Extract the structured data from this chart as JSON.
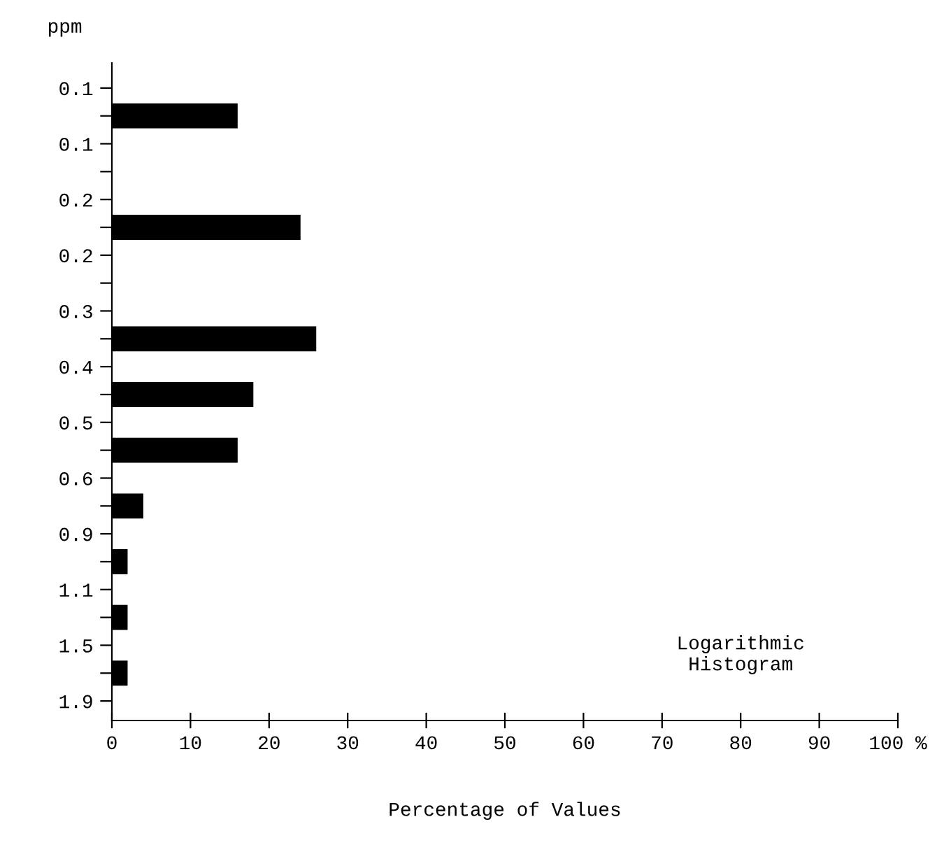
{
  "chart_data": {
    "type": "bar",
    "orientation": "horizontal",
    "categories": [
      "0.1",
      null,
      "0.1",
      null,
      "0.2",
      null,
      "0.2",
      null,
      "0.3",
      null,
      "0.4",
      null,
      "0.5",
      null,
      "0.6",
      null,
      "0.9",
      null,
      "1.1",
      null,
      "1.5",
      null,
      "1.9"
    ],
    "values": [
      null,
      16,
      null,
      0,
      null,
      24,
      null,
      0,
      null,
      26,
      null,
      18,
      null,
      16,
      null,
      4,
      null,
      2,
      null,
      2,
      null,
      2,
      null
    ],
    "color": "#000000",
    "xlim": [
      0,
      100
    ],
    "xticks": [
      0,
      10,
      20,
      30,
      40,
      50,
      60,
      70,
      80,
      90,
      {
        "value": 100,
        "label": "100 %"
      }
    ],
    "xlabel": "Percentage of Values",
    "ylabel": "ppm",
    "annotations": [
      "Logarithmic\nHistogram"
    ],
    "grid": false
  }
}
